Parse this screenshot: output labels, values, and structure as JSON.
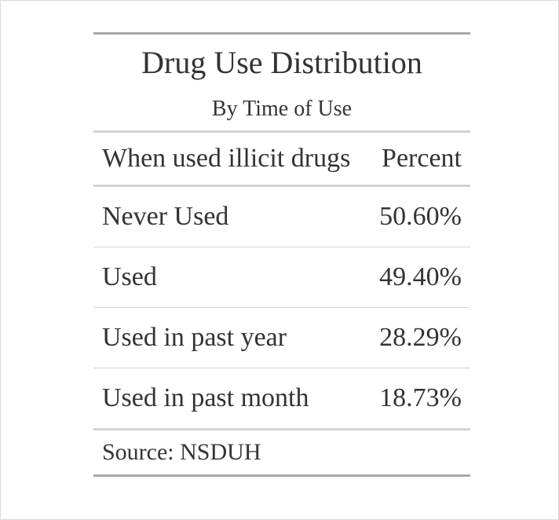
{
  "table": {
    "title": "Drug Use Distribution",
    "subtitle": "By Time of Use",
    "columns": [
      "When used illicit drugs",
      "Percent"
    ],
    "rows": [
      {
        "label": "Never Used",
        "value": "50.60%"
      },
      {
        "label": "Used",
        "value": "49.40%"
      },
      {
        "label": "Used in past year",
        "value": "28.29%"
      },
      {
        "label": "Used in past month",
        "value": "18.73%"
      }
    ],
    "source_note": "Source: NSDUH"
  },
  "chart_data": {
    "type": "table",
    "title": "Drug Use Distribution",
    "subtitle": "By Time of Use",
    "columns": [
      "When used illicit drugs",
      "Percent"
    ],
    "categories": [
      "Never Used",
      "Used",
      "Used in past year",
      "Used in past month"
    ],
    "values": [
      50.6,
      49.4,
      28.29,
      18.73
    ],
    "source": "Source: NSDUH"
  }
}
